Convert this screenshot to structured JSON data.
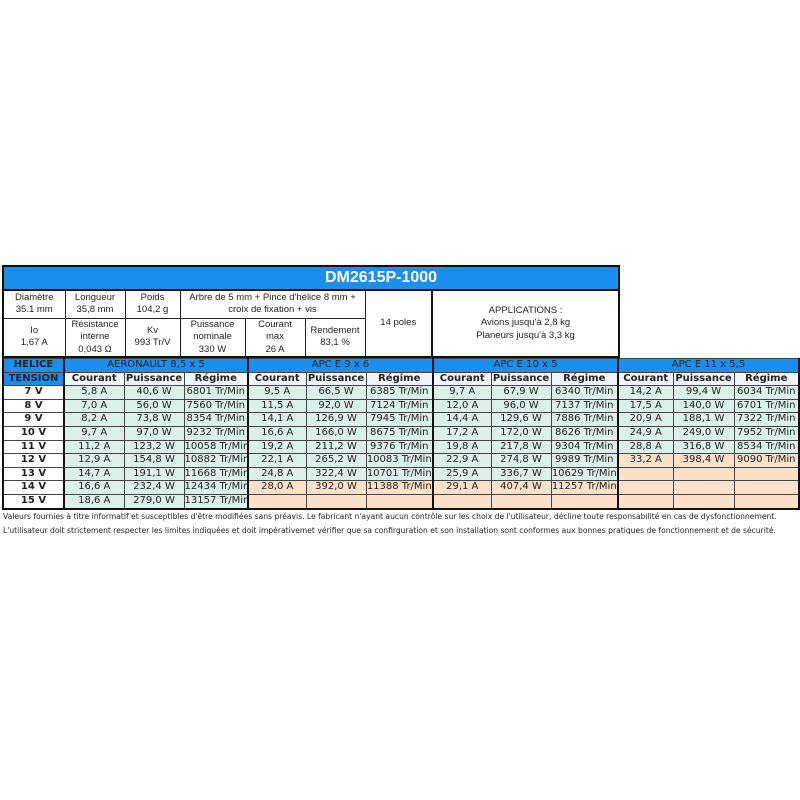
{
  "title": "DM2615P-1000",
  "specs": {
    "diametre": [
      "Diamètre",
      "35.1 mm"
    ],
    "longueur": [
      "Longueur",
      "35,8 mm"
    ],
    "poids": [
      "Poids",
      "104,2 g"
    ],
    "arbre": [
      "Arbre de 5 mm + Pince d'hélice 8 mm +",
      "croix de fixation + vis"
    ],
    "poles": "14 poles",
    "applications": [
      "APPLICATIONS :",
      "Avions jusqu'à 2,8 kg",
      "Planeurs jusqu'à 3,3 kg"
    ],
    "io": [
      "Io",
      "1,67 A"
    ],
    "resistance": [
      "Résistance",
      "interne",
      "0,043 Ω"
    ],
    "kv": [
      "Kv",
      "993 Tr/V"
    ],
    "puissance": [
      "Puissance",
      "nominale",
      "330 W"
    ],
    "courant_max": [
      "Courant",
      "max",
      "26 A"
    ],
    "rendement": [
      "Rendement",
      "83,1 %"
    ]
  },
  "header": {
    "helice": "HELICE",
    "tension": "TENSION",
    "props": [
      "AERONAULT 8,5 x 5",
      "APC E 9 x 6",
      "APC E 10 x 5",
      "APC E 11 x 5,5"
    ],
    "cols": [
      "Courant",
      "Puissance",
      "Régime"
    ]
  },
  "colors": {
    "accent": "#1a8ff0",
    "ok": "#dcf0ea",
    "limit": "#fbe1c9"
  },
  "rows": [
    {
      "v": "7 V",
      "cells": [
        [
          "5,8 A",
          "40,6 W",
          "6801 Tr/Min",
          "ok"
        ],
        [
          "9,5 A",
          "66,5 W",
          "6385 Tr/Min",
          "ok"
        ],
        [
          "9,7 A",
          "67,9 W",
          "6340 Tr/Min",
          "ok"
        ],
        [
          "14,2 A",
          "99,4 W",
          "6034 Tr/Min",
          "ok"
        ]
      ]
    },
    {
      "v": "8 V",
      "cells": [
        [
          "7,0 A",
          "56,0 W",
          "7560 Tr/Min",
          "ok"
        ],
        [
          "11,5 A",
          "92,0 W",
          "7124 Tr/Min",
          "ok"
        ],
        [
          "12,0 A",
          "96,0 W",
          "7137 Tr/Min",
          "ok"
        ],
        [
          "17,5 A",
          "140,0 W",
          "6701 Tr/Min",
          "ok"
        ]
      ]
    },
    {
      "v": "9 V",
      "cells": [
        [
          "8,2 A",
          "73,8 W",
          "8354 Tr/Min",
          "ok"
        ],
        [
          "14,1 A",
          "126,9 W",
          "7945 Tr/Min",
          "ok"
        ],
        [
          "14,4 A",
          "129,6 W",
          "7886 Tr/Min",
          "ok"
        ],
        [
          "20,9 A",
          "188,1 W",
          "7322 Tr/Min",
          "ok"
        ]
      ]
    },
    {
      "v": "10 V",
      "cells": [
        [
          "9,7 A",
          "97,0 W",
          "9232 Tr/Min",
          "ok"
        ],
        [
          "16,6 A",
          "166,0 W",
          "8675 Tr/Min",
          "ok"
        ],
        [
          "17,2 A",
          "172,0 W",
          "8626 Tr/Min",
          "ok"
        ],
        [
          "24,9 A",
          "249,0 W",
          "7952 Tr/Min",
          "ok"
        ]
      ]
    },
    {
      "v": "11 V",
      "cells": [
        [
          "11,2 A",
          "123,2 W",
          "10058 Tr/Min",
          "ok"
        ],
        [
          "19,2 A",
          "211,2 W",
          "9376 Tr/Min",
          "ok"
        ],
        [
          "19,8 A",
          "217,8 W",
          "9304 Tr/Min",
          "ok"
        ],
        [
          "28,8 A",
          "316,8 W",
          "8534 Tr/Min",
          "ok"
        ]
      ]
    },
    {
      "v": "12 V",
      "cells": [
        [
          "12,9 A",
          "154,8 W",
          "10882 Tr/Min",
          "ok"
        ],
        [
          "22,1 A",
          "265,2 W",
          "10083 Tr/Min",
          "ok"
        ],
        [
          "22,9 A",
          "274,8 W",
          "9989 Tr/Min",
          "ok"
        ],
        [
          "33,2 A",
          "398,4 W",
          "9090 Tr/Min",
          "warn"
        ]
      ]
    },
    {
      "v": "13 V",
      "cells": [
        [
          "14,7 A",
          "191,1 W",
          "11668 Tr/Min",
          "ok"
        ],
        [
          "24,8 A",
          "322,4 W",
          "10701 Tr/Min",
          "ok"
        ],
        [
          "25,9 A",
          "336,7 W",
          "10629 Tr/Min",
          "ok"
        ],
        [
          "",
          "",
          "",
          "warn"
        ]
      ]
    },
    {
      "v": "14 V",
      "cells": [
        [
          "16,6 A",
          "232,4 W",
          "12434 Tr/Min",
          "ok"
        ],
        [
          "28,0 A",
          "392,0 W",
          "11388 Tr/Min",
          "warn"
        ],
        [
          "29,1 A",
          "407,4 W",
          "11257 Tr/Min",
          "warn"
        ],
        [
          "",
          "",
          "",
          "warn"
        ]
      ]
    },
    {
      "v": "15 V",
      "cells": [
        [
          "18,6 A",
          "279,0 W",
          "13157 Tr/Min",
          "ok"
        ],
        [
          "",
          "",
          "",
          "warn"
        ],
        [
          "",
          "",
          "",
          "warn"
        ],
        [
          "",
          "",
          "",
          "warn"
        ]
      ]
    }
  ],
  "footer": [
    "Valeurs fournies à titre informatif et susceptibles d'être modifiées sans préavis. Le fabricant n'ayant aucun contrôle sur les choix de l'utilisateur, décline toute responsabilité en cas de dysfonctionnement.",
    "L'utilisateur doit strictement respecter les limites indiquées et doit impérativemet vérifier que sa confirguration et son installation sont conformes aux bonnes pratiques de fonctionnement et de sécurité."
  ]
}
